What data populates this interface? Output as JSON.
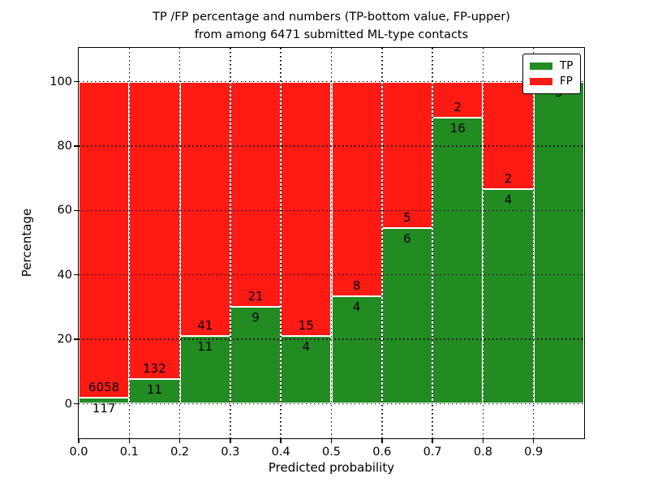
{
  "title": {
    "line1": "TP /FP percentage and numbers (TP-bottom value, FP-upper)",
    "line2": "from among 6471 submitted ML-type contacts"
  },
  "axes": {
    "xlabel": "Predicted probability",
    "ylabel": "Percentage",
    "x_ticks": [
      "0.0",
      "0.1",
      "0.2",
      "0.3",
      "0.4",
      "0.5",
      "0.6",
      "0.7",
      "0.8",
      "0.9"
    ],
    "y_ticks": [
      0,
      20,
      40,
      60,
      80,
      100
    ]
  },
  "legend": {
    "items": [
      {
        "label": "TP",
        "color": "#228b22"
      },
      {
        "label": "FP",
        "color": "#ff1a13"
      }
    ]
  },
  "chart_data": {
    "type": "bar",
    "stacked": true,
    "normalized_to_percent": true,
    "title": "TP /FP percentage and numbers (TP-bottom value, FP-upper) from among 6471 submitted ML-type contacts",
    "xlabel": "Predicted probability",
    "ylabel": "Percentage",
    "total_contacts": 6471,
    "bin_edges": [
      0.0,
      0.1,
      0.2,
      0.3,
      0.4,
      0.5,
      0.6,
      0.7,
      0.8,
      0.9,
      1.0
    ],
    "series": [
      {
        "name": "TP",
        "color": "#228b22",
        "counts": [
          117,
          11,
          11,
          9,
          4,
          4,
          6,
          16,
          4,
          5
        ]
      },
      {
        "name": "FP",
        "color": "#ff1a13",
        "counts": [
          6058,
          132,
          41,
          21,
          15,
          8,
          5,
          2,
          2,
          0
        ]
      }
    ],
    "tp_percent": [
      1.9,
      7.7,
      21.2,
      30.0,
      21.1,
      33.3,
      54.5,
      88.9,
      66.7,
      100.0
    ],
    "bar_value_labels": {
      "tp": [
        "117",
        "11",
        "11",
        "9",
        "4",
        "4",
        "6",
        "16",
        "4",
        "5"
      ],
      "fp": [
        "6058",
        "132",
        "41",
        "21",
        "15",
        "8",
        "5",
        "2",
        "2",
        ""
      ]
    },
    "xlim": [
      0.0,
      1.0
    ],
    "ylim": [
      -10.8,
      110.8
    ],
    "grid": "dotted",
    "legend_position": "upper right"
  }
}
